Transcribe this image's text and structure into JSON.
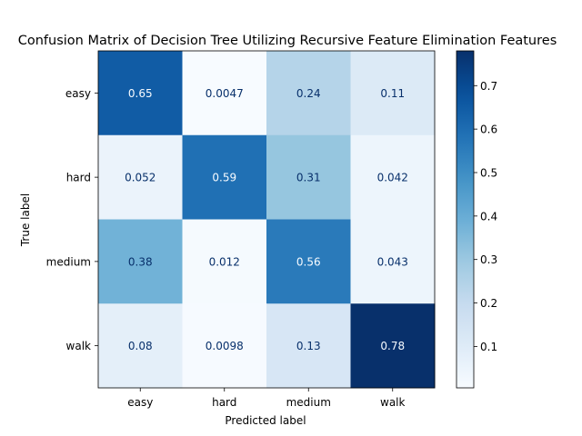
{
  "chart_data": {
    "type": "heatmap",
    "title": "Confusion Matrix of Decision Tree Utilizing Recursive Feature Elimination Features",
    "xlabel": "Predicted label",
    "ylabel": "True label",
    "x_categories": [
      "easy",
      "hard",
      "medium",
      "walk"
    ],
    "y_categories": [
      "easy",
      "hard",
      "medium",
      "walk"
    ],
    "values": [
      [
        0.65,
        0.0047,
        0.24,
        0.11
      ],
      [
        0.052,
        0.59,
        0.31,
        0.042
      ],
      [
        0.38,
        0.012,
        0.56,
        0.043
      ],
      [
        0.08,
        0.0098,
        0.13,
        0.78
      ]
    ],
    "cell_labels": [
      [
        "0.65",
        "0.0047",
        "0.24",
        "0.11"
      ],
      [
        "0.052",
        "0.59",
        "0.31",
        "0.042"
      ],
      [
        "0.38",
        "0.012",
        "0.56",
        "0.043"
      ],
      [
        "0.08",
        "0.0098",
        "0.13",
        "0.78"
      ]
    ],
    "colormap": "Blues",
    "colorbar": {
      "range": [
        0.0047,
        0.78
      ],
      "ticks": [
        0.1,
        0.2,
        0.3,
        0.4,
        0.5,
        0.6,
        0.7
      ]
    },
    "grid": false
  }
}
